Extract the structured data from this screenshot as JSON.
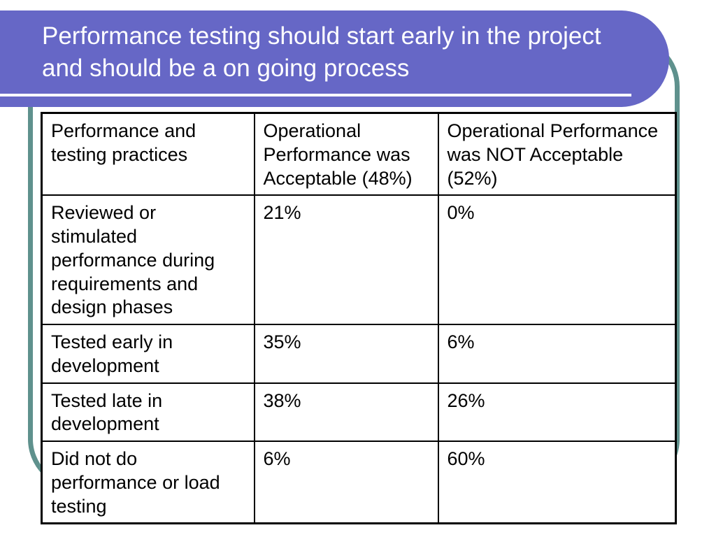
{
  "slide": {
    "title": "Performance testing should start early in the project and should be a on going process"
  },
  "table": {
    "headers": [
      "Performance and testing practices",
      "Operational Performance was Acceptable (48%)",
      "Operational Performance was NOT Acceptable (52%)"
    ],
    "rows": [
      {
        "label": "Reviewed or stimulated performance during requirements and design phases",
        "acceptable": "21%",
        "not_acceptable": "0%"
      },
      {
        "label": "Tested early in development",
        "acceptable": "35%",
        "not_acceptable": "6%"
      },
      {
        "label": "Tested late in development",
        "acceptable": "38%",
        "not_acceptable": "26%"
      },
      {
        "label": "Did not do performance or load testing",
        "acceptable": "6%",
        "not_acceptable": "60%"
      }
    ]
  },
  "colors": {
    "banner_purple": "#6667C6",
    "frame_teal": "#5F918D",
    "title_text": "#ffffff",
    "table_border": "#000000"
  }
}
